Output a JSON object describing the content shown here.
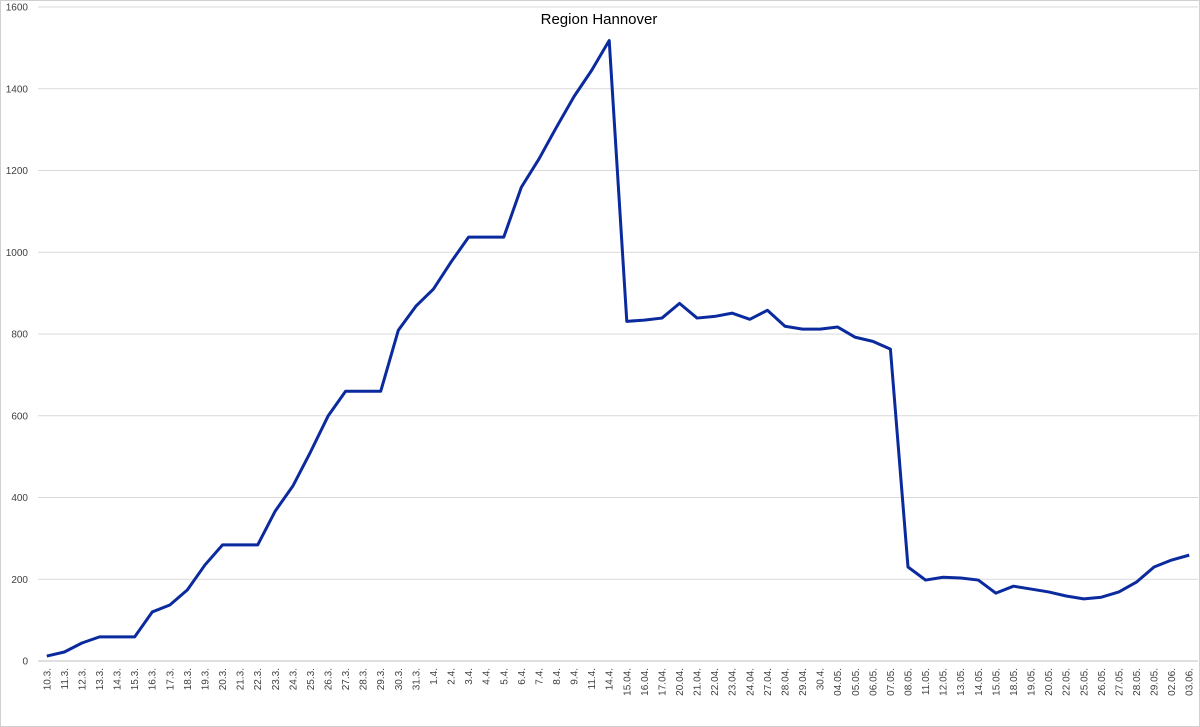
{
  "chart_data": {
    "type": "line",
    "title": "Region Hannover",
    "categories": [
      "10.3.",
      "11.3.",
      "12.3.",
      "13.3.",
      "14.3.",
      "15.3.",
      "16.3.",
      "17.3.",
      "18.3.",
      "19.3.",
      "20.3.",
      "21.3.",
      "22.3.",
      "23.3.",
      "24.3.",
      "25.3.",
      "26.3.",
      "27.3.",
      "28.3.",
      "29.3.",
      "30.3.",
      "31.3.",
      "1.4.",
      "2.4.",
      "3.4.",
      "4.4.",
      "5.4.",
      "6.4.",
      "7.4.",
      "8.4.",
      "9.4.",
      "11.4.",
      "14.4.",
      "15.04.",
      "16.04.",
      "17.04.",
      "20.04.",
      "21.04.",
      "22.04.",
      "23.04.",
      "24.04.",
      "27.04.",
      "28.04.",
      "29.04.",
      "30.4.",
      "04.05.",
      "05.05.",
      "06.05.",
      "07.05.",
      "08.05.",
      "11.05.",
      "12.05.",
      "13.05.",
      "14.05.",
      "15.05.",
      "18.05.",
      "19.05.",
      "20.05.",
      "22.05.",
      "25.05.",
      "26.05.",
      "27.05.",
      "28.05.",
      "29.05.",
      "02.06.",
      "03.06."
    ],
    "values": [
      12,
      22,
      44,
      59,
      59,
      59,
      120,
      137,
      174,
      235,
      284,
      284,
      284,
      367,
      428,
      511,
      599,
      660,
      660,
      660,
      809,
      868,
      910,
      976,
      1037,
      1037,
      1037,
      1159,
      1228,
      1306,
      1381,
      1445,
      1518,
      831,
      834,
      839,
      875,
      839,
      843,
      851,
      836,
      858,
      819,
      812,
      812,
      817,
      792,
      782,
      763,
      230,
      198,
      205,
      203,
      198,
      166,
      183,
      176,
      169,
      159,
      152,
      156,
      169,
      193,
      230,
      247,
      259
    ],
    "color": "#0a2a9e",
    "ylim": [
      0,
      1600
    ],
    "yticks": [
      0,
      200,
      400,
      600,
      800,
      1000,
      1200,
      1400,
      1600
    ],
    "grid": true
  }
}
